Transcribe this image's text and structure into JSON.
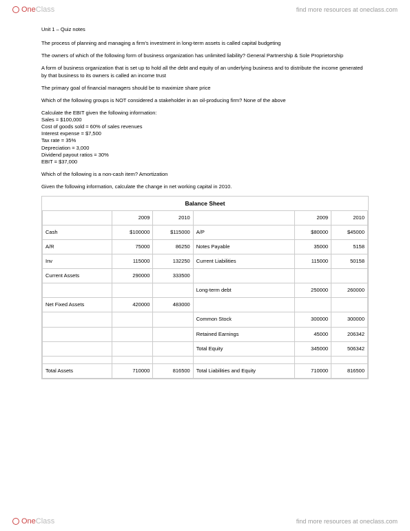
{
  "brand": {
    "one": "One",
    "class": "Class",
    "tagline": "find more resources at oneclass.com"
  },
  "title": "Unit 1 – Quiz notes",
  "paras": [
    "The process of planning and managing a firm's investment in long-term assets is called capital budgeting",
    "The owners of which of the following form of business organization has unlimited liability? General Partnership & Sole Proprietorship",
    "A form of business organization that is set up to hold all the debt and equity of an underlying business and to distribute the income generated by that business to its owners is called an income trust",
    "The primary goal of financial managers should be to maximize share price",
    "Which of the following groups is NOT considered a stakeholder in an oil-producing firm? None of the above"
  ],
  "ebit": {
    "lead": "Calculate the EBIT given the following information:",
    "lines": [
      "Sales = $100,000",
      "Cost of goods sold = 60% of sales revenues",
      "Interest expense = $7,500",
      "Tax rate = 35%",
      "Depreciation = 3,000",
      "Dividend payout ratios = 30%",
      "EBIT = $37,000"
    ]
  },
  "paras2": [
    "Which of the following is a non-cash item? Amortization",
    "Given the following information, calculate the change in net working capital in 2010."
  ],
  "table": {
    "title": "Balance Sheet",
    "years": [
      "2009",
      "2010"
    ],
    "left": [
      {
        "label": "Cash",
        "v1": "$100000",
        "v2": "$115000"
      },
      {
        "label": "A/R",
        "v1": "75000",
        "v2": "86250"
      },
      {
        "label": "Inv",
        "v1": "115000",
        "v2": "132250"
      },
      {
        "label": "Current Assets",
        "v1": "290000",
        "v2": "333500"
      },
      {
        "label": "",
        "v1": "",
        "v2": ""
      },
      {
        "label": "Net Fixed Assets",
        "v1": "420000",
        "v2": "483000"
      },
      {
        "label": "",
        "v1": "",
        "v2": ""
      },
      {
        "label": "",
        "v1": "",
        "v2": ""
      },
      {
        "label": "",
        "v1": "",
        "v2": ""
      },
      {
        "label": "",
        "v1": "",
        "v2": ""
      },
      {
        "label": "Total Assets",
        "v1": "710000",
        "v2": "816500"
      }
    ],
    "right": [
      {
        "label": "A/P",
        "v1": "$80000",
        "v2": "$45000"
      },
      {
        "label": "Notes Payable",
        "v1": "35000",
        "v2": "5158"
      },
      {
        "label": "Current Liabilities",
        "v1": "115000",
        "v2": "50158"
      },
      {
        "label": "",
        "v1": "",
        "v2": ""
      },
      {
        "label": "Long-term debt",
        "v1": "250000",
        "v2": "260000"
      },
      {
        "label": "",
        "v1": "",
        "v2": ""
      },
      {
        "label": "Common Stock",
        "v1": "300000",
        "v2": "300000"
      },
      {
        "label": "Retained Earnings",
        "v1": "45000",
        "v2": "206342"
      },
      {
        "label": "Total Equity",
        "v1": "345000",
        "v2": "506342"
      },
      {
        "label": "",
        "v1": "",
        "v2": ""
      },
      {
        "label": "Total Liabilities and Equity",
        "v1": "710000",
        "v2": "816500"
      }
    ]
  },
  "colors": {
    "border": "#cccccc",
    "text": "#000000",
    "muted": "#999999",
    "brandRed": "#cc4444"
  }
}
